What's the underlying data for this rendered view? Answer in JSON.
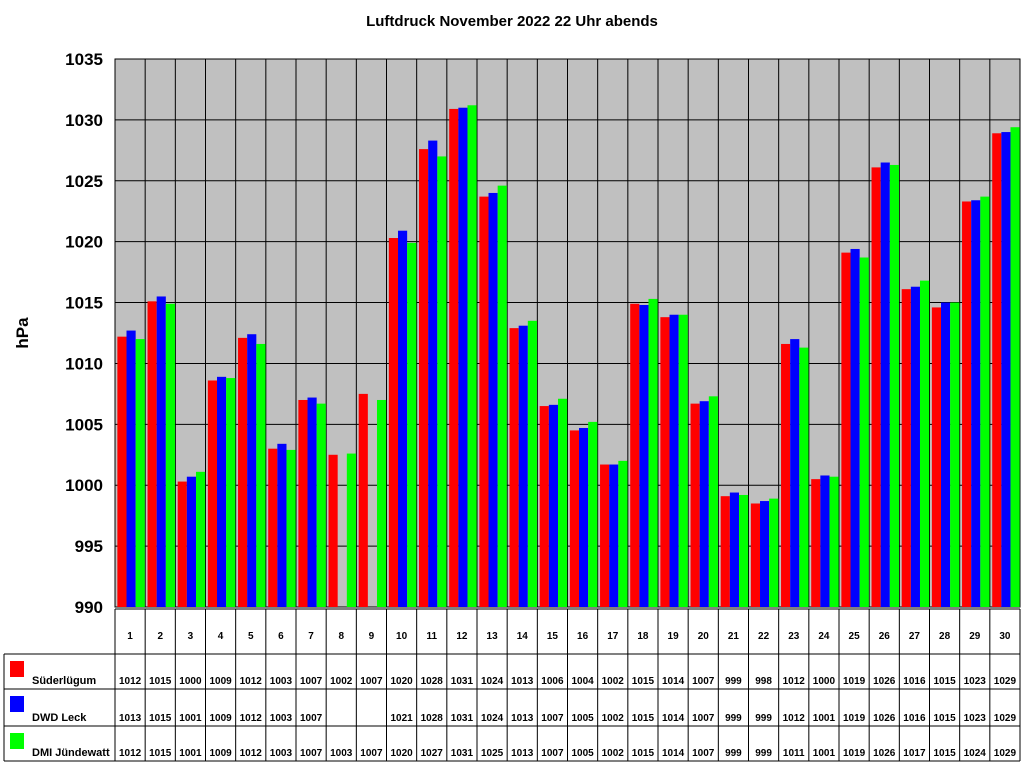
{
  "chart_data": {
    "type": "bar",
    "title": "Luftdruck November 2022 22 Uhr abends",
    "ylabel": "hPa",
    "xlabel": "",
    "ylim": [
      990,
      1035
    ],
    "yticks": [
      990,
      995,
      1000,
      1005,
      1010,
      1015,
      1020,
      1025,
      1030,
      1035
    ],
    "grid": true,
    "legend": "bottom-left",
    "categories": [
      "1",
      "2",
      "3",
      "4",
      "5",
      "6",
      "7",
      "8",
      "9",
      "10",
      "11",
      "12",
      "13",
      "14",
      "15",
      "16",
      "17",
      "18",
      "19",
      "20",
      "21",
      "22",
      "23",
      "24",
      "25",
      "26",
      "27",
      "28",
      "29",
      "30"
    ],
    "series": [
      {
        "name": "Süderlügum",
        "color": "#ff0000",
        "values": [
          1012.2,
          1015.1,
          1000.3,
          1008.6,
          1012.1,
          1003.0,
          1007.0,
          1002.5,
          1007.5,
          1020.3,
          1027.6,
          1030.9,
          1023.7,
          1012.9,
          1006.5,
          1004.5,
          1001.7,
          1014.9,
          1013.8,
          1006.7,
          999.1,
          998.5,
          1011.6,
          1000.5,
          1019.1,
          1026.1,
          1016.1,
          1014.6,
          1023.3,
          1028.9
        ],
        "labels": [
          "1012",
          "1015",
          "1000",
          "1009",
          "1012",
          "1003",
          "1007",
          "1002",
          "1007",
          "1020",
          "1028",
          "1031",
          "1024",
          "1013",
          "1006",
          "1004",
          "1002",
          "1015",
          "1014",
          "1007",
          "999",
          "998",
          "1012",
          "1000",
          "1019",
          "1026",
          "1016",
          "1015",
          "1023",
          "1029"
        ]
      },
      {
        "name": "DWD Leck",
        "color": "#0000ff",
        "values": [
          1012.7,
          1015.5,
          1000.7,
          1008.9,
          1012.4,
          1003.4,
          1007.2,
          null,
          null,
          1020.9,
          1028.3,
          1031.0,
          1024.0,
          1013.1,
          1006.6,
          1004.7,
          1001.7,
          1014.8,
          1014.0,
          1006.9,
          999.4,
          998.7,
          1012.0,
          1000.8,
          1019.4,
          1026.5,
          1016.3,
          1015.0,
          1023.4,
          1029.0
        ],
        "labels": [
          "1013",
          "1015",
          "1001",
          "1009",
          "1012",
          "1003",
          "1007",
          "",
          "",
          "1021",
          "1028",
          "1031",
          "1024",
          "1013",
          "1007",
          "1005",
          "1002",
          "1015",
          "1014",
          "1007",
          "999",
          "999",
          "1012",
          "1001",
          "1019",
          "1026",
          "1016",
          "1015",
          "1023",
          "1029"
        ]
      },
      {
        "name": "DMI Jündewatt",
        "color": "#00ff00",
        "values": [
          1012.0,
          1014.9,
          1001.1,
          1008.8,
          1011.6,
          1002.9,
          1006.7,
          1002.6,
          1007.0,
          1019.9,
          1027.0,
          1031.2,
          1024.6,
          1013.5,
          1007.1,
          1005.2,
          1002.0,
          1015.3,
          1014.0,
          1007.3,
          999.2,
          998.9,
          1011.3,
          1000.7,
          1018.7,
          1026.3,
          1016.8,
          1015.0,
          1023.7,
          1029.4
        ],
        "labels": [
          "1012",
          "1015",
          "1001",
          "1009",
          "1012",
          "1003",
          "1007",
          "1003",
          "1007",
          "1020",
          "1027",
          "1031",
          "1025",
          "1013",
          "1007",
          "1005",
          "1002",
          "1015",
          "1014",
          "1007",
          "999",
          "999",
          "1011",
          "1001",
          "1019",
          "1026",
          "1017",
          "1015",
          "1024",
          "1029"
        ]
      }
    ]
  }
}
